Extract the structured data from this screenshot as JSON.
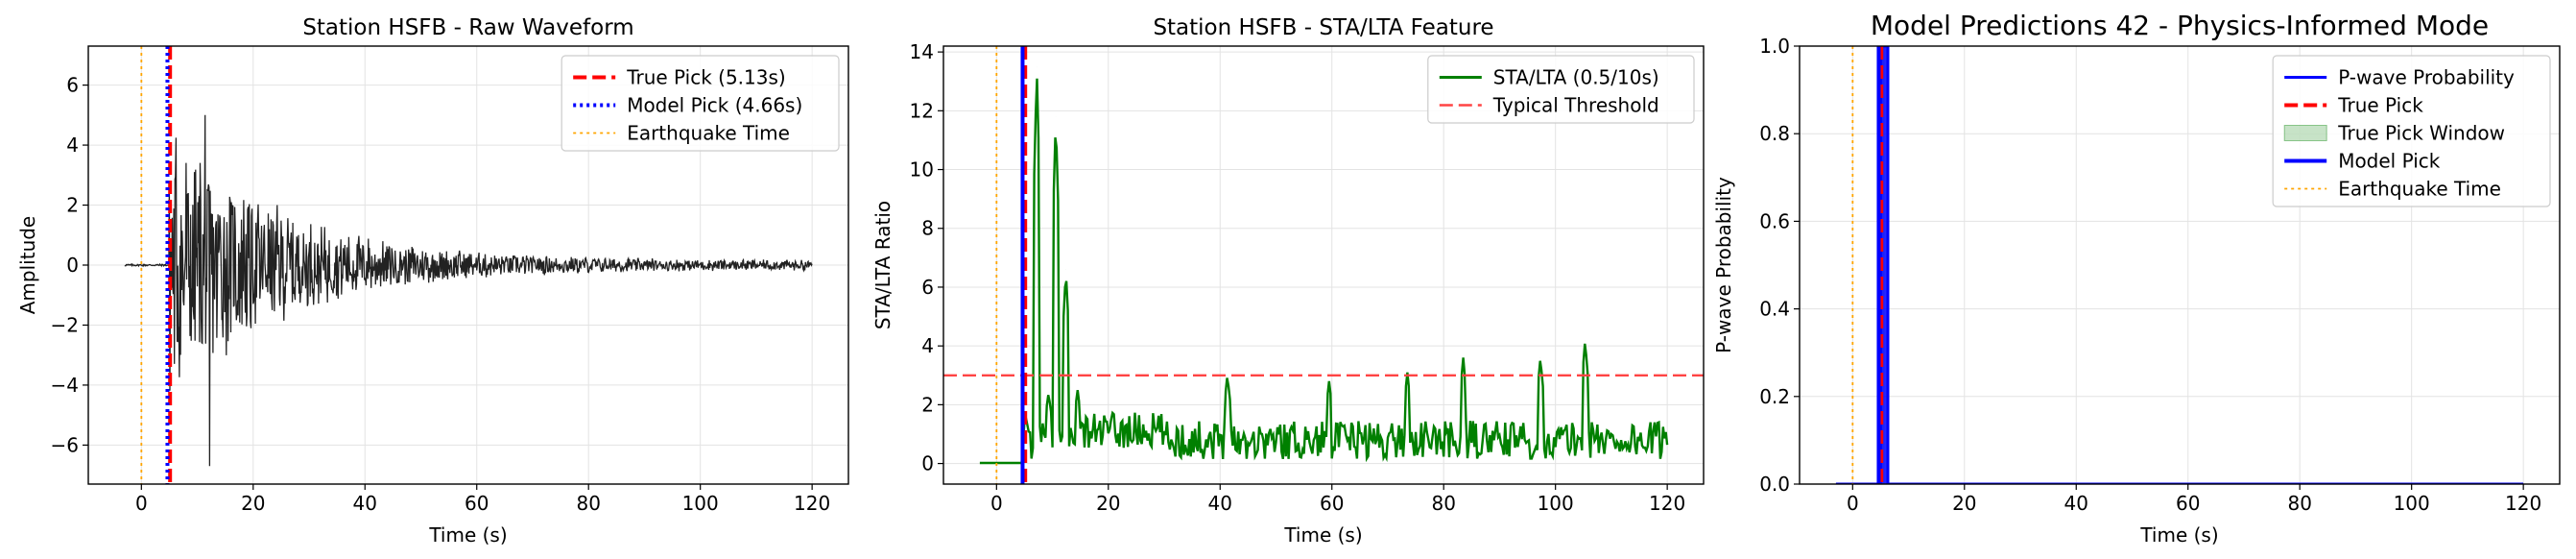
{
  "chart_data": [
    {
      "type": "line",
      "title": "Station HSFB - Raw Waveform",
      "xlabel": "Time (s)",
      "ylabel": "Amplitude",
      "xlim": [
        -9.5,
        126.5
      ],
      "ylim": [
        -7.3,
        7.3
      ],
      "xticks": [
        0,
        20,
        40,
        60,
        80,
        100,
        120
      ],
      "yticks": [
        -6,
        -4,
        -2,
        0,
        2,
        4,
        6
      ],
      "grid": true,
      "legend_position": "top-right",
      "series": [
        {
          "name": "",
          "kind": "waveform",
          "color": "#222222",
          "x_range": [
            -3,
            120
          ]
        }
      ],
      "vlines": [
        {
          "name": "True Pick (5.13s)",
          "x": 5.13,
          "color": "#ff0000",
          "style": "dashed"
        },
        {
          "name": "Model Pick (4.66s)",
          "x": 4.66,
          "color": "#0000ff",
          "style": "dotted"
        },
        {
          "name": "Earthquake Time",
          "x": 0,
          "color": "#ffa500",
          "style": "dotted"
        }
      ],
      "legend": [
        "True Pick (5.13s)",
        "Model Pick (4.66s)",
        "Earthquake Time"
      ]
    },
    {
      "type": "line",
      "title": "Station HSFB - STA/LTA Feature",
      "xlabel": "Time (s)",
      "ylabel": "STA/LTA Ratio",
      "xlim": [
        -9.5,
        126.5
      ],
      "ylim": [
        -0.7,
        14.2
      ],
      "xticks": [
        0,
        20,
        40,
        60,
        80,
        100,
        120
      ],
      "yticks": [
        0,
        2,
        4,
        6,
        8,
        10,
        12,
        14
      ],
      "grid": true,
      "legend_position": "top-right",
      "series": [
        {
          "name": "STA/LTA (0.5/10s)",
          "color": "#008000",
          "peaks": [
            [
              5.2,
              1.6
            ],
            [
              7.2,
              13.5
            ],
            [
              9.3,
              2.4
            ],
            [
              10.6,
              11.8
            ],
            [
              12.4,
              6.6
            ],
            [
              14.5,
              2.5
            ],
            [
              41.3,
              3.0
            ],
            [
              59.5,
              2.8
            ],
            [
              73.5,
              3.1
            ],
            [
              83.5,
              3.6
            ],
            [
              97.3,
              3.6
            ],
            [
              105.3,
              4.2
            ]
          ]
        }
      ],
      "hlines": [
        {
          "name": "Typical Threshold",
          "y": 3.0,
          "color": "#ff4444",
          "style": "dashed"
        }
      ],
      "vlines": [
        {
          "name": "",
          "x": 5.13,
          "color": "#ff0000",
          "style": "dashed"
        },
        {
          "name": "",
          "x": 4.66,
          "color": "#0000ff",
          "style": "solid"
        },
        {
          "name": "",
          "x": 0,
          "color": "#ffa500",
          "style": "dotted"
        }
      ],
      "legend": [
        "STA/LTA (0.5/10s)",
        "Typical Threshold"
      ]
    },
    {
      "type": "line",
      "title": "Model Predictions 42 - Physics-Informed Mode",
      "xlabel": "Time (s)",
      "ylabel": "P-wave Probability",
      "xlim": [
        -9.5,
        126.5
      ],
      "ylim": [
        0.0,
        1.0
      ],
      "xticks": [
        0,
        20,
        40,
        60,
        80,
        100,
        120
      ],
      "yticks": [
        0.0,
        0.2,
        0.4,
        0.6,
        0.8,
        1.0
      ],
      "grid": true,
      "legend_position": "top-right",
      "series": [
        {
          "name": "P-wave Probability",
          "color": "#0000ff",
          "pulse": {
            "x_start": 5.0,
            "x_end": 6.3,
            "y": 1.0
          },
          "x_range": [
            -3,
            120
          ]
        }
      ],
      "spans": [
        {
          "name": "True Pick Window",
          "x": [
            4.6,
            5.7
          ],
          "color": "#008000",
          "opacity": 0.22
        }
      ],
      "vlines": [
        {
          "name": "True Pick",
          "x": 5.13,
          "color": "#ff0000",
          "style": "dashed"
        },
        {
          "name": "Model Pick",
          "x": 4.66,
          "color": "#0000ff",
          "style": "solid"
        },
        {
          "name": "Earthquake Time",
          "x": 0,
          "color": "#ffa500",
          "style": "dotted"
        }
      ],
      "legend": [
        "P-wave Probability",
        "True Pick",
        "True Pick Window",
        "Model Pick",
        "Earthquake Time"
      ]
    }
  ]
}
